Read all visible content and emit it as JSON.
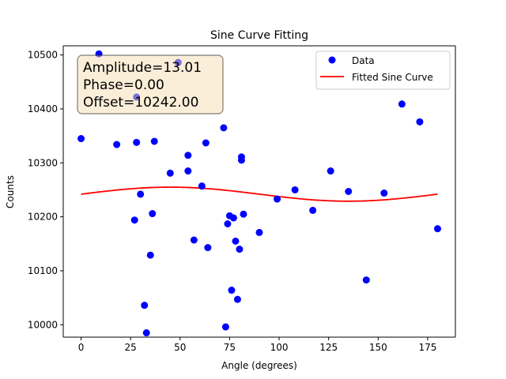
{
  "chart_data": {
    "type": "scatter",
    "title": "Sine Curve Fitting",
    "xlabel": "Angle (degrees)",
    "ylabel": "Counts",
    "xlim": [
      -9,
      189
    ],
    "ylim": [
      9977,
      10517
    ],
    "xticks": [
      0,
      25,
      50,
      75,
      100,
      125,
      150,
      175
    ],
    "yticks": [
      10000,
      10100,
      10200,
      10300,
      10400,
      10500
    ],
    "grid": false,
    "legend_position": "top-right",
    "annotation": {
      "lines": [
        "Amplitude=13.01",
        "Phase=0.00",
        "Offset=10242.00"
      ],
      "position": "top-left"
    },
    "fit": {
      "amplitude": 13.01,
      "phase": 0.0,
      "offset": 10242.0,
      "x_range": [
        0,
        180
      ]
    },
    "series": [
      {
        "name": "Data",
        "kind": "scatter",
        "color": "#0000ff",
        "points": [
          [
            0,
            10345
          ],
          [
            9,
            10502
          ],
          [
            18,
            10334
          ],
          [
            27,
            10194
          ],
          [
            28,
            10422
          ],
          [
            28,
            10338
          ],
          [
            30,
            10242
          ],
          [
            32,
            10036
          ],
          [
            33,
            9985
          ],
          [
            35,
            10129
          ],
          [
            36,
            10206
          ],
          [
            37,
            10340
          ],
          [
            45,
            10281
          ],
          [
            49,
            10486
          ],
          [
            54,
            10285
          ],
          [
            54,
            10314
          ],
          [
            57,
            10157
          ],
          [
            61,
            10257
          ],
          [
            63,
            10337
          ],
          [
            64,
            10143
          ],
          [
            72,
            10365
          ],
          [
            73,
            9996
          ],
          [
            74,
            10187
          ],
          [
            75,
            10202
          ],
          [
            76,
            10064
          ],
          [
            77,
            10198
          ],
          [
            78,
            10155
          ],
          [
            79,
            10047
          ],
          [
            80,
            10140
          ],
          [
            81,
            10311
          ],
          [
            81,
            10305
          ],
          [
            82,
            10205
          ],
          [
            90,
            10171
          ],
          [
            99,
            10233
          ],
          [
            108,
            10250
          ],
          [
            117,
            10212
          ],
          [
            126,
            10285
          ],
          [
            135,
            10247
          ],
          [
            144,
            10083
          ],
          [
            153,
            10244
          ],
          [
            162,
            10409
          ],
          [
            171,
            10376
          ],
          [
            180,
            10178
          ]
        ]
      },
      {
        "name": "Fitted Sine Curve",
        "kind": "line",
        "color": "#ff0000"
      }
    ]
  }
}
